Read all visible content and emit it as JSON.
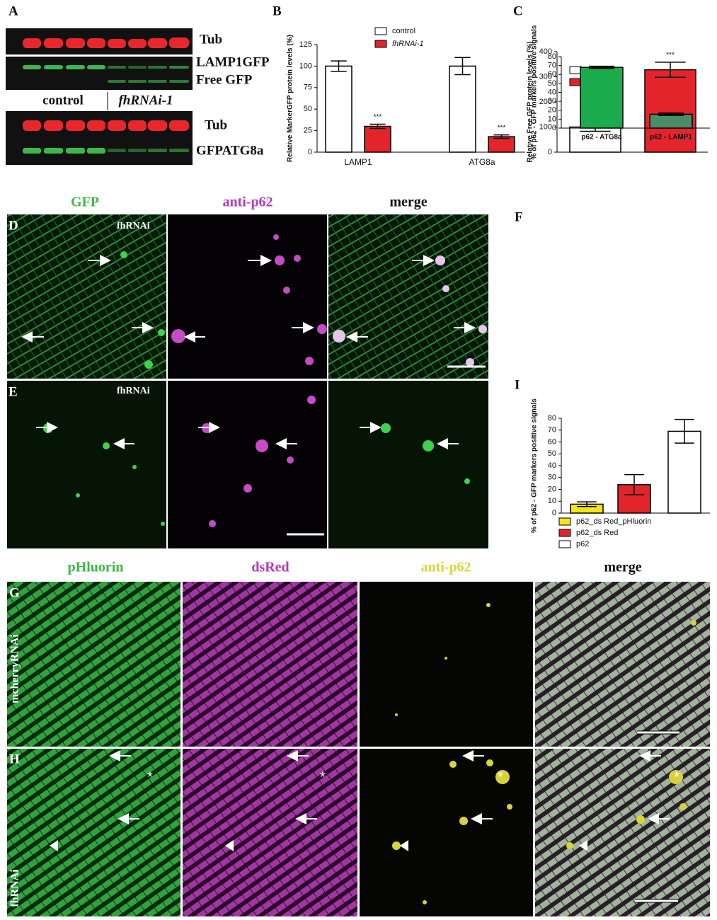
{
  "panel_labels": [
    "A",
    "B",
    "C",
    "D",
    "E",
    "F",
    "G",
    "H",
    "I"
  ],
  "blot": {
    "labels": [
      "Tub",
      "LAMP1GFP",
      "Free GFP",
      "Tub",
      "GFPATG8a"
    ],
    "groups": [
      "control",
      "fhRNAi-1"
    ]
  },
  "microscopy_top": {
    "columns": [
      "GFP",
      "anti-p62",
      "merge"
    ],
    "condition": "fhRNAi"
  },
  "microscopy_bottom": {
    "columns": [
      "pHluorin",
      "dsRed",
      "anti-p62",
      "merge"
    ],
    "rows": [
      "mcherryRNAi",
      "fhRNAi"
    ]
  },
  "chart_data": [
    {
      "type": "bar",
      "ylabel": "Relative MarkerGFP protein levels (%)",
      "categories": [
        "LAMP1",
        "ATG8a"
      ],
      "series": [
        {
          "name": "control",
          "color": "#ffffff",
          "values": [
            100,
            100
          ],
          "errors": [
            6,
            10
          ]
        },
        {
          "name": "fhRNAi-1",
          "color": "#e3242b",
          "values": [
            30,
            18
          ],
          "errors": [
            2.5,
            2
          ],
          "annotations": [
            "***",
            "***"
          ]
        }
      ],
      "ylim": [
        0,
        125
      ],
      "yticks": [
        0,
        25,
        50,
        75,
        100,
        125
      ]
    },
    {
      "type": "bar",
      "ylabel": "Relative Free GFP protein levels (%)",
      "series": [
        {
          "name": "control",
          "color": "#ffffff",
          "values": [
            100
          ],
          "errors": [
            17
          ]
        },
        {
          "name": "fhRNAi-1",
          "color": "#e3242b",
          "values": [
            328
          ],
          "errors": [
            30
          ],
          "annotations": [
            "***"
          ]
        }
      ],
      "ylim": [
        0,
        400
      ],
      "yticks": [
        0,
        100,
        200,
        300,
        400
      ]
    },
    {
      "type": "bar",
      "ylabel": "% of p62 - GFP markers positive signals",
      "categories": [
        "p62 - ATG8a",
        "p62 - LAMP1"
      ],
      "values": [
        68,
        15.5
      ],
      "errors": [
        1.2,
        1.3
      ],
      "colors": [
        "#1aab4c",
        "#4c8c68"
      ],
      "ylim": [
        0,
        80
      ],
      "yticks": [
        0,
        10,
        20,
        30,
        40,
        50,
        60,
        70,
        80
      ]
    },
    {
      "type": "bar",
      "ylabel": "% of p62 - GFP markers positive signals",
      "series": [
        {
          "name": "p62_ds Red_pHluorin",
          "color": "#f5e51b",
          "values": [
            7.5
          ],
          "errors": [
            2
          ]
        },
        {
          "name": "p62_ds Red",
          "color": "#e3242b",
          "values": [
            24
          ],
          "errors": [
            8.5
          ]
        },
        {
          "name": "p62",
          "color": "#ffffff",
          "values": [
            69
          ],
          "errors": [
            10
          ]
        }
      ],
      "ylim": [
        0,
        80
      ],
      "yticks": [
        0,
        10,
        20,
        30,
        40,
        50,
        60,
        70,
        80
      ]
    }
  ]
}
